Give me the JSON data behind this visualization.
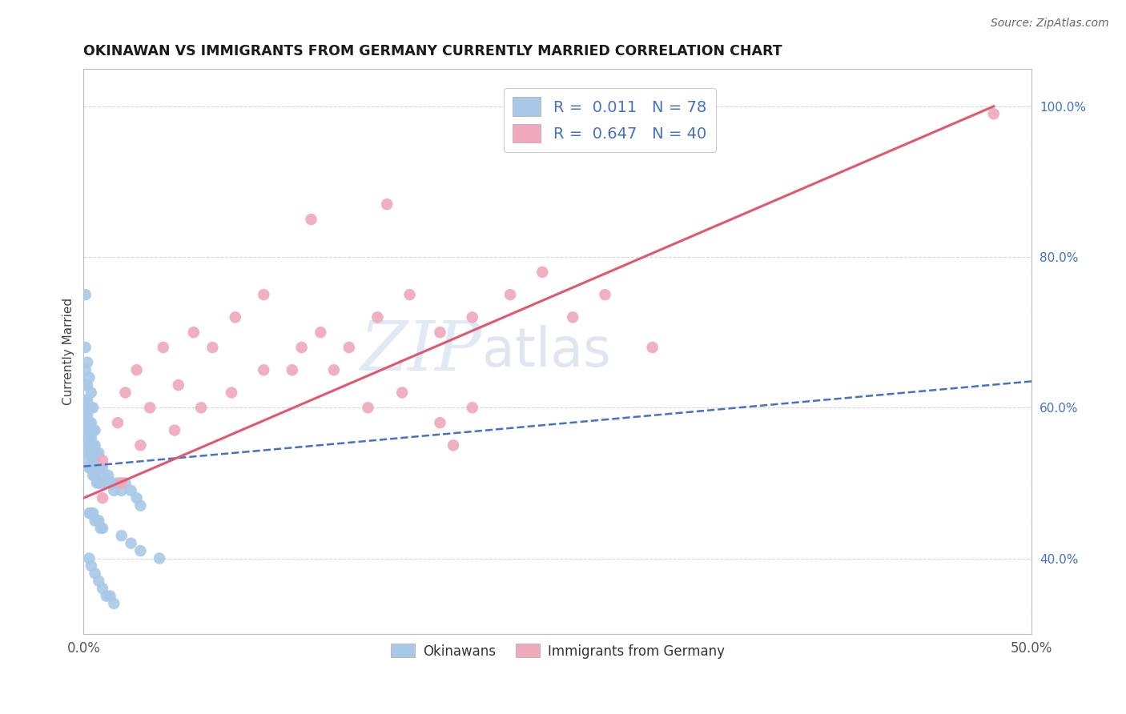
{
  "title": "OKINAWAN VS IMMIGRANTS FROM GERMANY CURRENTLY MARRIED CORRELATION CHART",
  "source": "Source: ZipAtlas.com",
  "ylabel": "Currently Married",
  "xmin": 0.0,
  "xmax": 0.5,
  "ymin": 0.3,
  "ymax": 1.05,
  "yticks": [
    0.4,
    0.6,
    0.8,
    1.0
  ],
  "ytick_labels": [
    "40.0%",
    "60.0%",
    "80.0%",
    "100.0%"
  ],
  "watermark_zip": "ZIP",
  "watermark_atlas": "atlas",
  "okinawan_color": "#a8c8e8",
  "germany_color": "#f0a8bc",
  "okinawan_line_color": "#4472c4",
  "germany_line_color": "#e05870",
  "legend_text_color": "#4472c4",
  "background_color": "#ffffff",
  "grid_color": "#cccccc",
  "oki_x": [
    0.001,
    0.001,
    0.001,
    0.001,
    0.001,
    0.001,
    0.002,
    0.002,
    0.002,
    0.002,
    0.002,
    0.002,
    0.003,
    0.003,
    0.003,
    0.003,
    0.003,
    0.004,
    0.004,
    0.004,
    0.004,
    0.004,
    0.005,
    0.005,
    0.005,
    0.005,
    0.006,
    0.006,
    0.006,
    0.006,
    0.007,
    0.007,
    0.007,
    0.008,
    0.008,
    0.008,
    0.009,
    0.009,
    0.01,
    0.01,
    0.011,
    0.012,
    0.013,
    0.014,
    0.015,
    0.016,
    0.018,
    0.02,
    0.022,
    0.025,
    0.028,
    0.03,
    0.003,
    0.004,
    0.005,
    0.006,
    0.007,
    0.008,
    0.009,
    0.01,
    0.001,
    0.002,
    0.003,
    0.004,
    0.005,
    0.003,
    0.004,
    0.006,
    0.008,
    0.01,
    0.012,
    0.014,
    0.016,
    0.02,
    0.025,
    0.03,
    0.04,
    0.001
  ],
  "oki_y": [
    0.55,
    0.57,
    0.59,
    0.61,
    0.63,
    0.65,
    0.53,
    0.55,
    0.57,
    0.59,
    0.61,
    0.63,
    0.52,
    0.54,
    0.56,
    0.58,
    0.6,
    0.52,
    0.54,
    0.56,
    0.58,
    0.6,
    0.51,
    0.53,
    0.55,
    0.57,
    0.51,
    0.53,
    0.55,
    0.57,
    0.5,
    0.52,
    0.54,
    0.5,
    0.52,
    0.54,
    0.5,
    0.52,
    0.5,
    0.52,
    0.51,
    0.5,
    0.51,
    0.5,
    0.5,
    0.49,
    0.5,
    0.49,
    0.5,
    0.49,
    0.48,
    0.47,
    0.46,
    0.46,
    0.46,
    0.45,
    0.45,
    0.45,
    0.44,
    0.44,
    0.68,
    0.66,
    0.64,
    0.62,
    0.6,
    0.4,
    0.39,
    0.38,
    0.37,
    0.36,
    0.35,
    0.35,
    0.34,
    0.43,
    0.42,
    0.41,
    0.4,
    0.75
  ],
  "ger_x": [
    0.48,
    0.01,
    0.018,
    0.022,
    0.028,
    0.035,
    0.042,
    0.05,
    0.058,
    0.068,
    0.08,
    0.095,
    0.11,
    0.125,
    0.14,
    0.155,
    0.172,
    0.188,
    0.205,
    0.225,
    0.242,
    0.258,
    0.275,
    0.01,
    0.02,
    0.03,
    0.048,
    0.062,
    0.078,
    0.095,
    0.115,
    0.132,
    0.15,
    0.168,
    0.188,
    0.205,
    0.3,
    0.12,
    0.16,
    0.195
  ],
  "ger_y": [
    0.99,
    0.53,
    0.58,
    0.62,
    0.65,
    0.6,
    0.68,
    0.63,
    0.7,
    0.68,
    0.72,
    0.75,
    0.65,
    0.7,
    0.68,
    0.72,
    0.75,
    0.7,
    0.72,
    0.75,
    0.78,
    0.72,
    0.75,
    0.48,
    0.5,
    0.55,
    0.57,
    0.6,
    0.62,
    0.65,
    0.68,
    0.65,
    0.6,
    0.62,
    0.58,
    0.6,
    0.68,
    0.85,
    0.87,
    0.55
  ]
}
